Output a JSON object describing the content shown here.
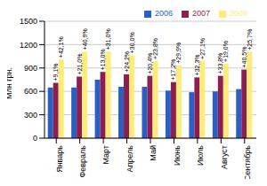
{
  "chart_data": {
    "type": "bar",
    "y_label": "Млн грн.",
    "categories": [
      "Январь",
      "Февраль",
      "Март",
      "Апрель",
      "Май",
      "Июнь",
      "Июль",
      "Август",
      "Сентябрь"
    ],
    "series": [
      {
        "name": "2006",
        "color": "#2a5fc4",
        "values": [
          650,
          650,
          750,
          660,
          660,
          610,
          590,
          600,
          630
        ]
      },
      {
        "name": "2007",
        "color": "#8c1f4f",
        "values": [
          710,
          790,
          850,
          820,
          800,
          720,
          780,
          800,
          880
        ],
        "growth_labels": [
          "+9,1%",
          "+21,0%",
          "+13,0%",
          "+24,2%",
          "+20,4%",
          "+17,2%",
          "+32,3%",
          "+33,8%",
          "+40,5%"
        ]
      },
      {
        "name": "2008",
        "color": "#ffeb7a",
        "values": [
          1010,
          1110,
          1110,
          1065,
          990,
          935,
          990,
          955,
          1105
        ],
        "growth_labels": [
          "+42,1%",
          "+40,9%",
          "+31,0%",
          "+30,0%",
          "+23,8%",
          "+29,9%",
          "+27,1%",
          "+19,0%",
          "+25,7%"
        ]
      }
    ],
    "ylim": [
      0,
      1500
    ],
    "yticks": [
      0,
      300,
      600,
      900,
      1200,
      1500
    ],
    "grid": true,
    "legend": "top-right"
  }
}
